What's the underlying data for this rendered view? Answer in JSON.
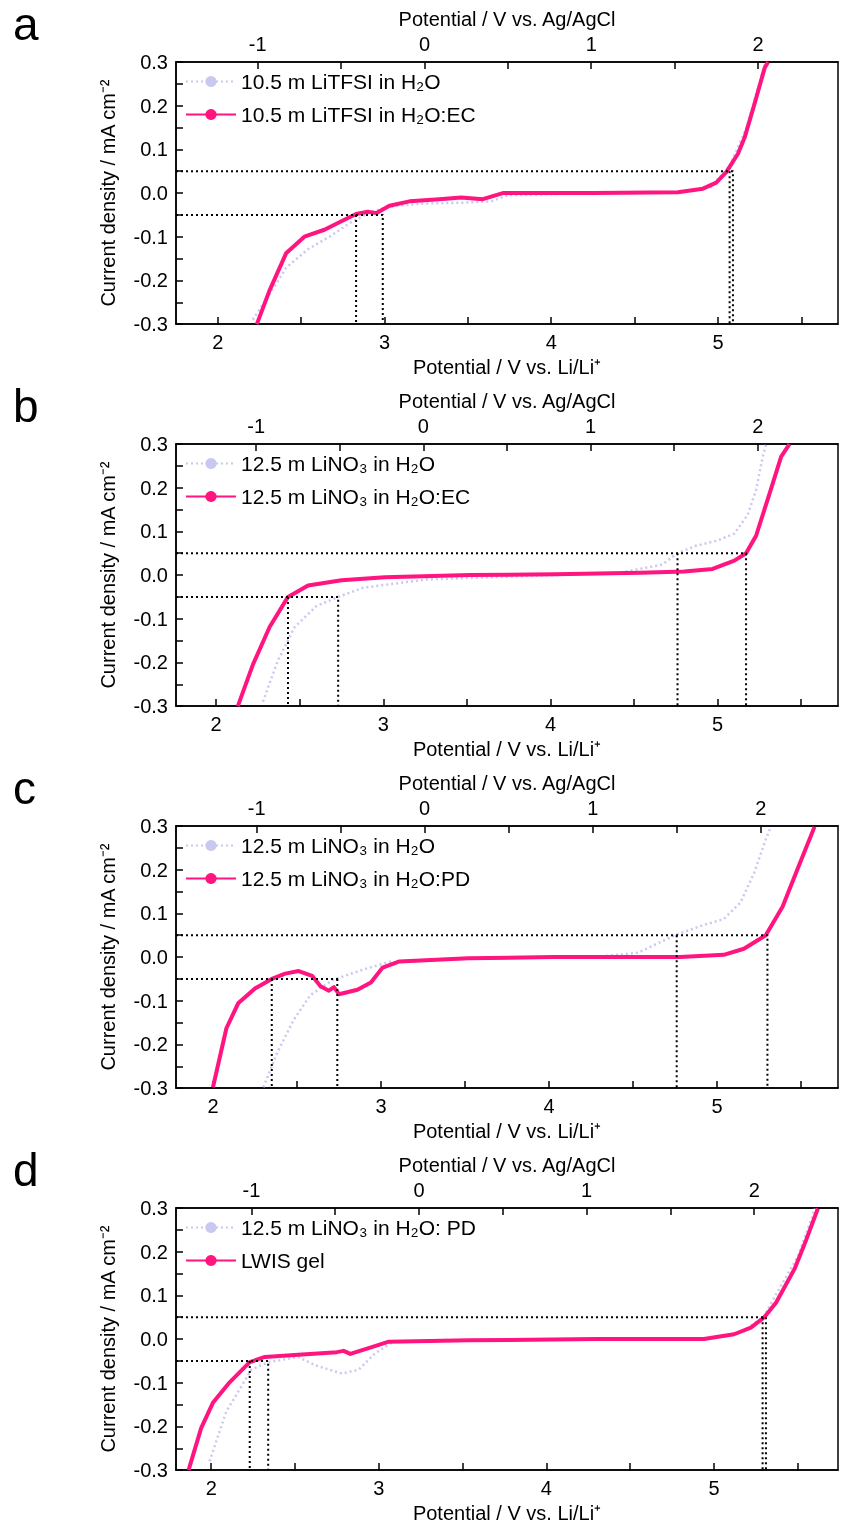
{
  "chart_data": [
    {
      "type": "line",
      "title": "a",
      "xlabel": "Potential / V vs. Li/Li⁺",
      "x2label": "Potential / V vs. Ag/AgCl",
      "ylabel": "Current density / mA cm⁻²",
      "xlim": [
        1.75,
        5.72
      ],
      "xticks": [
        2,
        {
          "value": 2.5,
          "label": null
        },
        3,
        {
          "value": 3.5,
          "label": null
        },
        4,
        {
          "value": 4.5,
          "label": null
        },
        5,
        {
          "value": 5.5,
          "label": null
        }
      ],
      "x2lim": [
        -1.49,
        2.48
      ],
      "x2ticks": [
        -1,
        {
          "value": -0.5,
          "label": null
        },
        0,
        {
          "value": 0.5,
          "label": null
        },
        1,
        {
          "value": 1.5,
          "label": null
        },
        2
      ],
      "ylim": [
        -0.3,
        0.3
      ],
      "yticks": [
        -0.3,
        {
          "value": -0.25,
          "label": null
        },
        -0.2,
        {
          "value": -0.15,
          "label": null
        },
        -0.1,
        {
          "value": -0.05,
          "label": null
        },
        {
          "value": 0,
          "label": "0.0"
        },
        {
          "value": 0.05,
          "label": null
        },
        0.1,
        {
          "value": 0.15,
          "label": null
        },
        0.2,
        {
          "value": 0.25,
          "label": null
        },
        0.3
      ],
      "grid": false,
      "legend": "top left",
      "marker": "none",
      "series": [
        {
          "name": "10.5 m LiTFSI in H₂O",
          "color": "#c8c8f0",
          "line_style": "dotted",
          "x": [
            2.21,
            2.31,
            2.41,
            2.54,
            2.67,
            2.8,
            2.92,
            3.03,
            3.23,
            3.48,
            3.64,
            3.74,
            4.25,
            4.76,
            4.96,
            5.07,
            5.17,
            5.27,
            5.28
          ],
          "values": [
            -0.29,
            -0.233,
            -0.171,
            -0.129,
            -0.1,
            -0.067,
            -0.043,
            -0.031,
            -0.024,
            -0.022,
            -0.019,
            -0.005,
            0,
            0,
            0.014,
            0.062,
            0.148,
            0.281,
            0.295
          ]
        },
        {
          "name": "10.5 m LiTFSI in H₂O:EC",
          "color": "#ff1480",
          "line_style": "solid",
          "x": [
            2.235,
            2.31,
            2.41,
            2.52,
            2.64,
            2.745,
            2.83,
            2.9,
            2.95,
            3.03,
            3.15,
            3.33,
            3.46,
            3.59,
            3.71,
            4.25,
            4.76,
            4.91,
            4.99,
            5.05,
            5.12,
            5.16,
            5.22,
            5.28,
            5.3
          ],
          "values": [
            -0.3,
            -0.224,
            -0.138,
            -0.1,
            -0.084,
            -0.064,
            -0.048,
            -0.043,
            -0.046,
            -0.029,
            -0.019,
            -0.014,
            -0.01,
            -0.014,
            0,
            0,
            0.002,
            0.01,
            0.024,
            0.048,
            0.09,
            0.127,
            0.205,
            0.286,
            0.3
          ]
        },
        {
          "color": "#000000",
          "line_style": "dotted",
          "x": [
            1.75,
            2.99,
            2.99
          ],
          "values": [
            -0.05,
            -0.05,
            -0.3
          ]
        },
        {
          "color": "#000000",
          "line_style": "dotted",
          "x": [
            2.83,
            2.83
          ],
          "values": [
            -0.05,
            -0.3
          ]
        },
        {
          "color": "#000000",
          "line_style": "dotted",
          "x": [
            1.75,
            5.09,
            5.09
          ],
          "values": [
            0.05,
            0.05,
            -0.3
          ]
        },
        {
          "color": "#000000",
          "line_style": "dotted",
          "x": [
            5.07,
            5.07
          ],
          "values": [
            0.05,
            -0.3
          ]
        }
      ]
    },
    {
      "type": "line",
      "title": "b",
      "xlabel": "Potential / V vs. Li/Li⁺",
      "x2label": "Potential / V vs. Ag/AgCl",
      "ylabel": "Current density / mA cm⁻²",
      "xlim": [
        1.76,
        5.72
      ],
      "xticks": [
        2,
        {
          "value": 2.5,
          "label": null
        },
        3,
        {
          "value": 3.5,
          "label": null
        },
        4,
        {
          "value": 4.5,
          "label": null
        },
        5,
        {
          "value": 5.5,
          "label": null
        }
      ],
      "x2lim": [
        -1.48,
        2.48
      ],
      "x2ticks": [
        -1,
        {
          "value": -0.5,
          "label": null
        },
        0,
        {
          "value": 0.5,
          "label": null
        },
        1,
        {
          "value": 1.5,
          "label": null
        },
        2
      ],
      "ylim": [
        -0.3,
        0.3
      ],
      "yticks": [
        -0.3,
        {
          "value": -0.25,
          "label": null
        },
        -0.2,
        {
          "value": -0.15,
          "label": null
        },
        -0.1,
        {
          "value": -0.05,
          "label": null
        },
        {
          "value": 0,
          "label": "0.0"
        },
        {
          "value": 0.05,
          "label": null
        },
        0.1,
        {
          "value": 0.15,
          "label": null
        },
        0.2,
        {
          "value": 0.25,
          "label": null
        },
        0.3
      ],
      "grid": false,
      "legend": "top left",
      "marker": "none",
      "series": [
        {
          "name": "12.5 m LiNO₃ in H₂O",
          "color": "#c8c8f0",
          "line_style": "dotted",
          "x": [
            2.28,
            2.37,
            2.47,
            2.6,
            2.73,
            2.88,
            3.26,
            4.03,
            4.41,
            4.67,
            4.76,
            4.87,
            5.0,
            5.1,
            5.18,
            5.23,
            5.27,
            5.29
          ],
          "values": [
            -0.29,
            -0.195,
            -0.119,
            -0.071,
            -0.05,
            -0.029,
            -0.01,
            0,
            0.005,
            0.024,
            0.05,
            0.067,
            0.079,
            0.095,
            0.138,
            0.195,
            0.271,
            0.3
          ]
        },
        {
          "name": "12.5 m LiNO₃ in H₂O:EC",
          "color": "#ff1480",
          "line_style": "solid",
          "x": [
            2.13,
            2.22,
            2.32,
            2.43,
            2.55,
            2.75,
            3.01,
            3.52,
            4.03,
            4.54,
            4.8,
            4.97,
            5.1,
            5.17,
            5.23,
            5.31,
            5.38,
            5.43
          ],
          "values": [
            -0.3,
            -0.205,
            -0.119,
            -0.05,
            -0.024,
            -0.012,
            -0.005,
            0,
            0.002,
            0.005,
            0.008,
            0.014,
            0.033,
            0.05,
            0.09,
            0.186,
            0.271,
            0.3
          ]
        },
        {
          "color": "#000000",
          "line_style": "dotted",
          "x": [
            1.76,
            2.73,
            2.73
          ],
          "values": [
            -0.05,
            -0.05,
            -0.3
          ]
        },
        {
          "color": "#000000",
          "line_style": "dotted",
          "x": [
            2.43,
            2.43
          ],
          "values": [
            -0.05,
            -0.3
          ]
        },
        {
          "color": "#000000",
          "line_style": "dotted",
          "x": [
            1.76,
            5.17,
            5.17
          ],
          "values": [
            0.05,
            0.05,
            -0.3
          ]
        },
        {
          "color": "#000000",
          "line_style": "dotted",
          "x": [
            4.76,
            4.76
          ],
          "values": [
            0.05,
            -0.3
          ]
        }
      ]
    },
    {
      "type": "line",
      "title": "c",
      "xlabel": "Potential / V vs. Li/Li⁺",
      "x2label": "Potential / V vs. Ag/AgCl",
      "ylabel": "Current density / mA cm⁻²",
      "xlim": [
        1.78,
        5.72
      ],
      "xticks": [
        2,
        {
          "value": 2.5,
          "label": null
        },
        3,
        {
          "value": 3.5,
          "label": null
        },
        4,
        {
          "value": 4.5,
          "label": null
        },
        5,
        {
          "value": 5.5,
          "label": null
        }
      ],
      "x2lim": [
        -1.48,
        2.46
      ],
      "x2ticks": [
        -1,
        {
          "value": -0.5,
          "label": null
        },
        0,
        {
          "value": 0.5,
          "label": null
        },
        1,
        {
          "value": 1.5,
          "label": null
        },
        2
      ],
      "ylim": [
        -0.3,
        0.3
      ],
      "yticks": [
        -0.3,
        {
          "value": -0.25,
          "label": null
        },
        -0.2,
        {
          "value": -0.15,
          "label": null
        },
        -0.1,
        {
          "value": -0.05,
          "label": null
        },
        {
          "value": 0,
          "label": "0.0"
        },
        {
          "value": 0.05,
          "label": null
        },
        0.1,
        {
          "value": 0.15,
          "label": null
        },
        0.2,
        {
          "value": 0.25,
          "label": null
        },
        0.3
      ],
      "grid": false,
      "legend": "top left",
      "marker": "none",
      "series": [
        {
          "name": "12.5 m LiNO₃ in H₂O",
          "color": "#c8c8f0",
          "line_style": "dotted",
          "x": [
            2.3,
            2.38,
            2.48,
            2.58,
            2.71,
            2.89,
            3.06,
            3.52,
            4.28,
            4.53,
            4.75,
            4.91,
            5.04,
            5.14,
            5.22,
            5.29,
            5.32
          ],
          "values": [
            -0.298,
            -0.221,
            -0.144,
            -0.087,
            -0.053,
            -0.029,
            -0.01,
            null,
            0,
            0.01,
            0.05,
            0.072,
            0.087,
            0.125,
            0.192,
            0.269,
            0.298
          ]
        },
        {
          "name": "12.5 m LiNO₃ in H₂O:PD",
          "color": "#ff1480",
          "line_style": "solid",
          "x": [
            2.0,
            2.08,
            2.15,
            2.25,
            2.35,
            2.43,
            2.51,
            2.59,
            2.64,
            2.69,
            2.72,
            2.75,
            2.86,
            2.94,
            3.01,
            3.11,
            3.52,
            4.03,
            4.78,
            5.04,
            5.16,
            5.29,
            5.39,
            5.49,
            5.58
          ],
          "values": [
            -0.298,
            -0.163,
            -0.106,
            -0.072,
            -0.05,
            -0.038,
            -0.032,
            -0.043,
            -0.067,
            -0.077,
            -0.069,
            -0.085,
            -0.075,
            -0.058,
            -0.024,
            -0.01,
            -0.003,
            0,
            0,
            0.005,
            0.019,
            0.05,
            0.115,
            0.212,
            0.298
          ]
        },
        {
          "color": "#000000",
          "line_style": "dotted",
          "x": [
            1.78,
            2.76
          ],
          "values": [
            -0.05,
            -0.05
          ]
        },
        {
          "color": "#000000",
          "line_style": "dotted",
          "x": [
            2.35,
            2.35
          ],
          "values": [
            -0.05,
            -0.3
          ]
        },
        {
          "color": "#000000",
          "line_style": "dotted",
          "x": [
            2.74,
            2.74
          ],
          "values": [
            -0.05,
            -0.3
          ]
        },
        {
          "color": "#000000",
          "line_style": "dotted",
          "x": [
            1.78,
            5.3,
            5.3
          ],
          "values": [
            0.05,
            0.05,
            -0.3
          ]
        },
        {
          "color": "#000000",
          "line_style": "dotted",
          "x": [
            4.76,
            4.76
          ],
          "values": [
            0.05,
            -0.3
          ]
        }
      ]
    },
    {
      "type": "line",
      "title": "d",
      "xlabel": "Potential / V vs. Li/Li⁺",
      "x2label": "Potential / V vs. Ag/AgCl",
      "ylabel": "Current density / mA cm⁻²",
      "xlim": [
        1.79,
        5.74
      ],
      "xticks": [
        2,
        {
          "value": 2.5,
          "label": null
        },
        3,
        {
          "value": 3.5,
          "label": null
        },
        4,
        {
          "value": 4.5,
          "label": null
        },
        5,
        {
          "value": 5.5,
          "label": null
        }
      ],
      "x2lim": [
        -1.45,
        2.5
      ],
      "x2ticks": [
        -1,
        {
          "value": -0.5,
          "label": null
        },
        0,
        {
          "value": 0.5,
          "label": null
        },
        1,
        {
          "value": 1.5,
          "label": null
        },
        2
      ],
      "ylim": [
        -0.3,
        0.3
      ],
      "yticks": [
        -0.3,
        {
          "value": -0.25,
          "label": null
        },
        -0.2,
        {
          "value": -0.15,
          "label": null
        },
        -0.1,
        {
          "value": -0.05,
          "label": null
        },
        {
          "value": 0,
          "label": "0.0"
        },
        {
          "value": 0.05,
          "label": null
        },
        0.1,
        {
          "value": 0.15,
          "label": null
        },
        0.2,
        {
          "value": 0.25,
          "label": null
        },
        0.3
      ],
      "grid": false,
      "legend": "top left",
      "marker": "none",
      "series": [
        {
          "name": "12.5 m LiNO₃ in H₂O: PD",
          "color": "#c8c8f0",
          "line_style": "dotted",
          "x": [
            1.99,
            2.09,
            2.24,
            2.34,
            2.52,
            2.62,
            2.78,
            2.88,
            2.98,
            3.08,
            3.8,
            4.94,
            5.17,
            5.3,
            5.37,
            5.5,
            5.59,
            5.6
          ],
          "values": [
            -0.28,
            -0.166,
            -0.07,
            -0.053,
            -0.041,
            -0.06,
            -0.079,
            -0.07,
            -0.032,
            -0.008,
            null,
            0,
            0.016,
            0.053,
            0.102,
            0.189,
            0.284,
            0.299
          ]
        },
        {
          "name": "LWIS gel",
          "color": "#ff1480",
          "line_style": "solid",
          "x": [
            1.865,
            1.94,
            2.01,
            2.11,
            2.23,
            2.32,
            2.52,
            2.75,
            2.79,
            2.83,
            2.93,
            3.06,
            3.54,
            4.3,
            4.94,
            5.12,
            5.22,
            5.3,
            5.37,
            5.48,
            5.55,
            5.62
          ],
          "values": [
            -0.3,
            -0.204,
            -0.146,
            -0.099,
            -0.053,
            -0.041,
            -0.036,
            -0.03,
            -0.027,
            -0.034,
            -0.022,
            -0.006,
            -0.003,
            0,
            0,
            0.011,
            0.026,
            0.05,
            0.083,
            0.16,
            0.227,
            0.299
          ]
        },
        {
          "color": "#000000",
          "line_style": "dotted",
          "x": [
            1.79,
            2.34,
            2.34
          ],
          "values": [
            -0.05,
            -0.05,
            -0.3
          ]
        },
        {
          "color": "#000000",
          "line_style": "dotted",
          "x": [
            2.23,
            2.23
          ],
          "values": [
            -0.05,
            -0.3
          ]
        },
        {
          "color": "#000000",
          "line_style": "dotted",
          "x": [
            1.79,
            5.31,
            5.31
          ],
          "values": [
            0.05,
            0.05,
            -0.3
          ]
        },
        {
          "color": "#000000",
          "line_style": "dotted",
          "x": [
            5.29,
            5.29
          ],
          "values": [
            0.05,
            -0.3
          ]
        }
      ]
    }
  ]
}
